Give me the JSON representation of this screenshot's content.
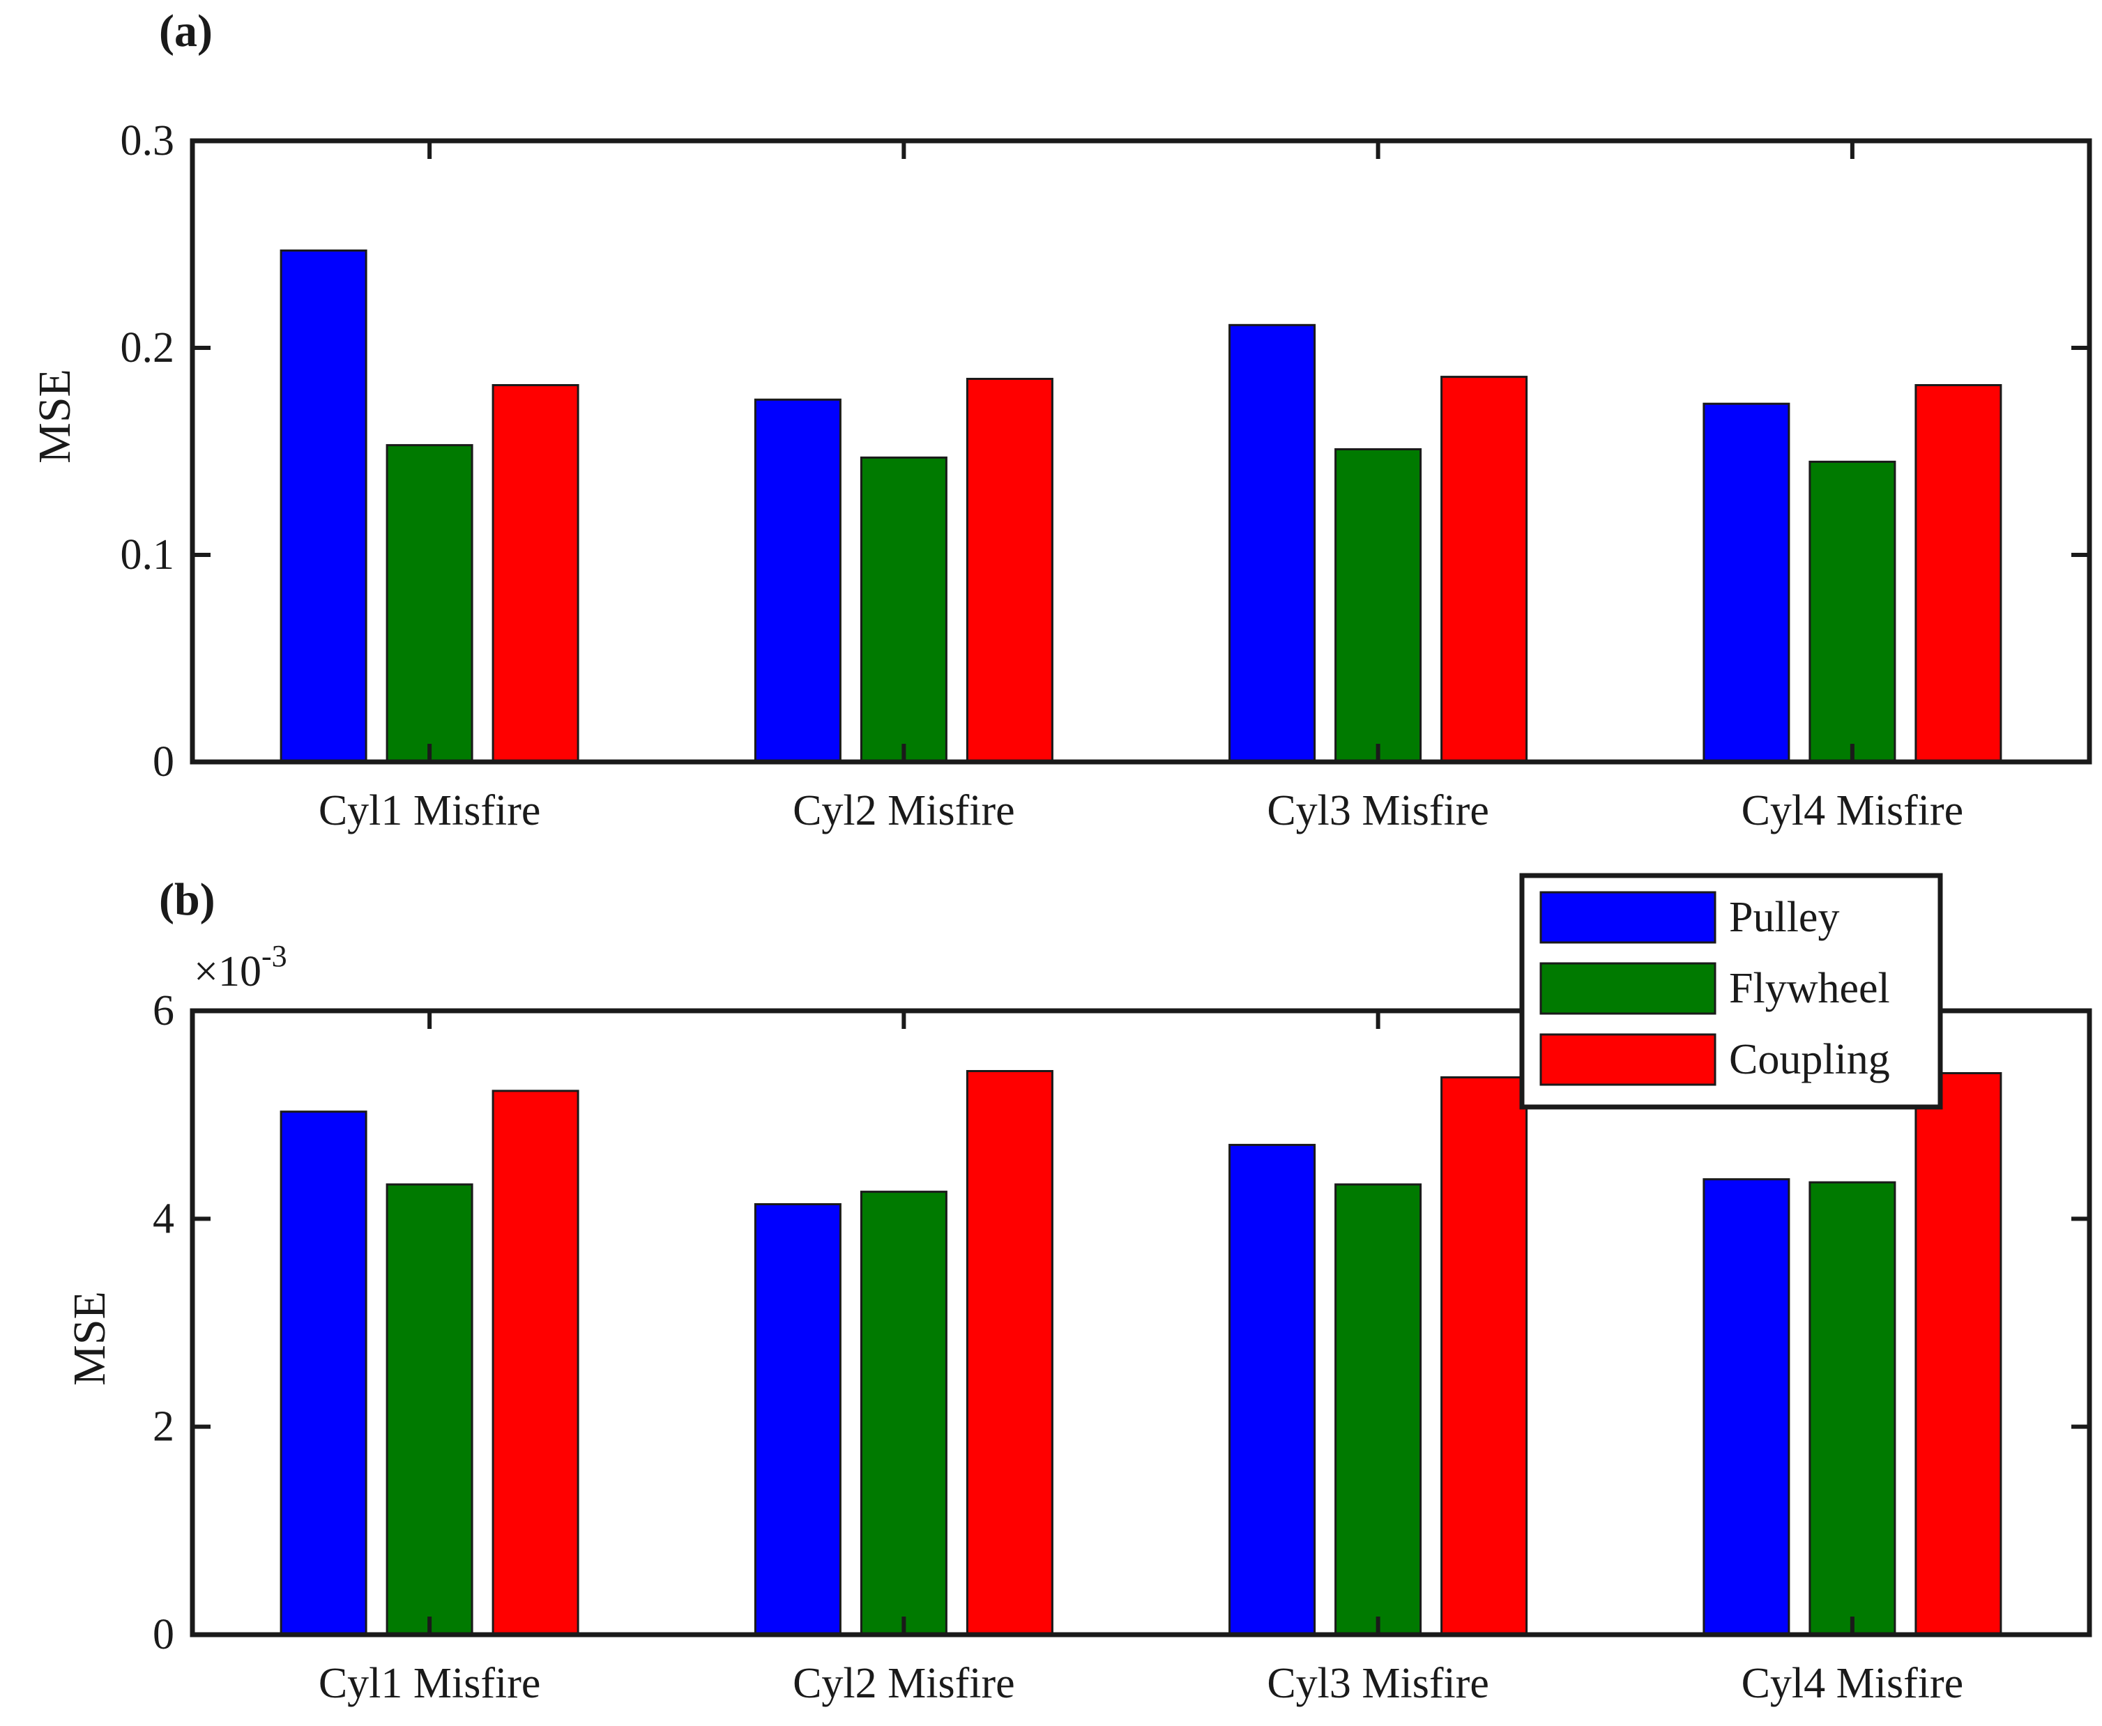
{
  "chart_data": [
    {
      "type": "bar",
      "panel_label": "(a)",
      "categories": [
        "Cyl1 Misfire",
        "Cyl2 Misfire",
        "Cyl3 Misfire",
        "Cyl4 Misfire"
      ],
      "series": [
        {
          "name": "Pulley",
          "color": "#0000ff",
          "values": [
            0.247,
            0.175,
            0.211,
            0.173
          ]
        },
        {
          "name": "Flywheel",
          "color": "#007a00",
          "values": [
            0.153,
            0.147,
            0.151,
            0.145
          ]
        },
        {
          "name": "Coupling",
          "color": "#ff0000",
          "values": [
            0.182,
            0.185,
            0.186,
            0.182
          ]
        }
      ],
      "ylabel": "MSE",
      "xlabel": "",
      "ylim": [
        0,
        0.3
      ],
      "yticks": [
        0,
        0.1,
        0.2,
        0.3
      ],
      "ytick_labels": [
        "0",
        "0.1",
        "0.2",
        "0.3"
      ],
      "legend": false
    },
    {
      "type": "bar",
      "panel_label": "(b)",
      "scale_label": "×10",
      "scale_exponent": "-3",
      "categories": [
        "Cyl1 Misfire",
        "Cyl2 Misfire",
        "Cyl3 Misfire",
        "Cyl4 Misfire"
      ],
      "series": [
        {
          "name": "Pulley",
          "color": "#0000ff",
          "values": [
            5.03,
            4.14,
            4.71,
            4.38
          ]
        },
        {
          "name": "Flywheel",
          "color": "#007a00",
          "values": [
            4.33,
            4.26,
            4.33,
            4.35
          ]
        },
        {
          "name": "Coupling",
          "color": "#ff0000",
          "values": [
            5.23,
            5.42,
            5.36,
            5.4
          ]
        }
      ],
      "ylabel": "MSE",
      "xlabel": "",
      "ylim": [
        0,
        6
      ],
      "yticks": [
        0,
        2,
        4,
        6
      ],
      "ytick_labels": [
        "0",
        "2",
        "4",
        "6"
      ],
      "legend": true,
      "legend_position": "top-right"
    }
  ]
}
